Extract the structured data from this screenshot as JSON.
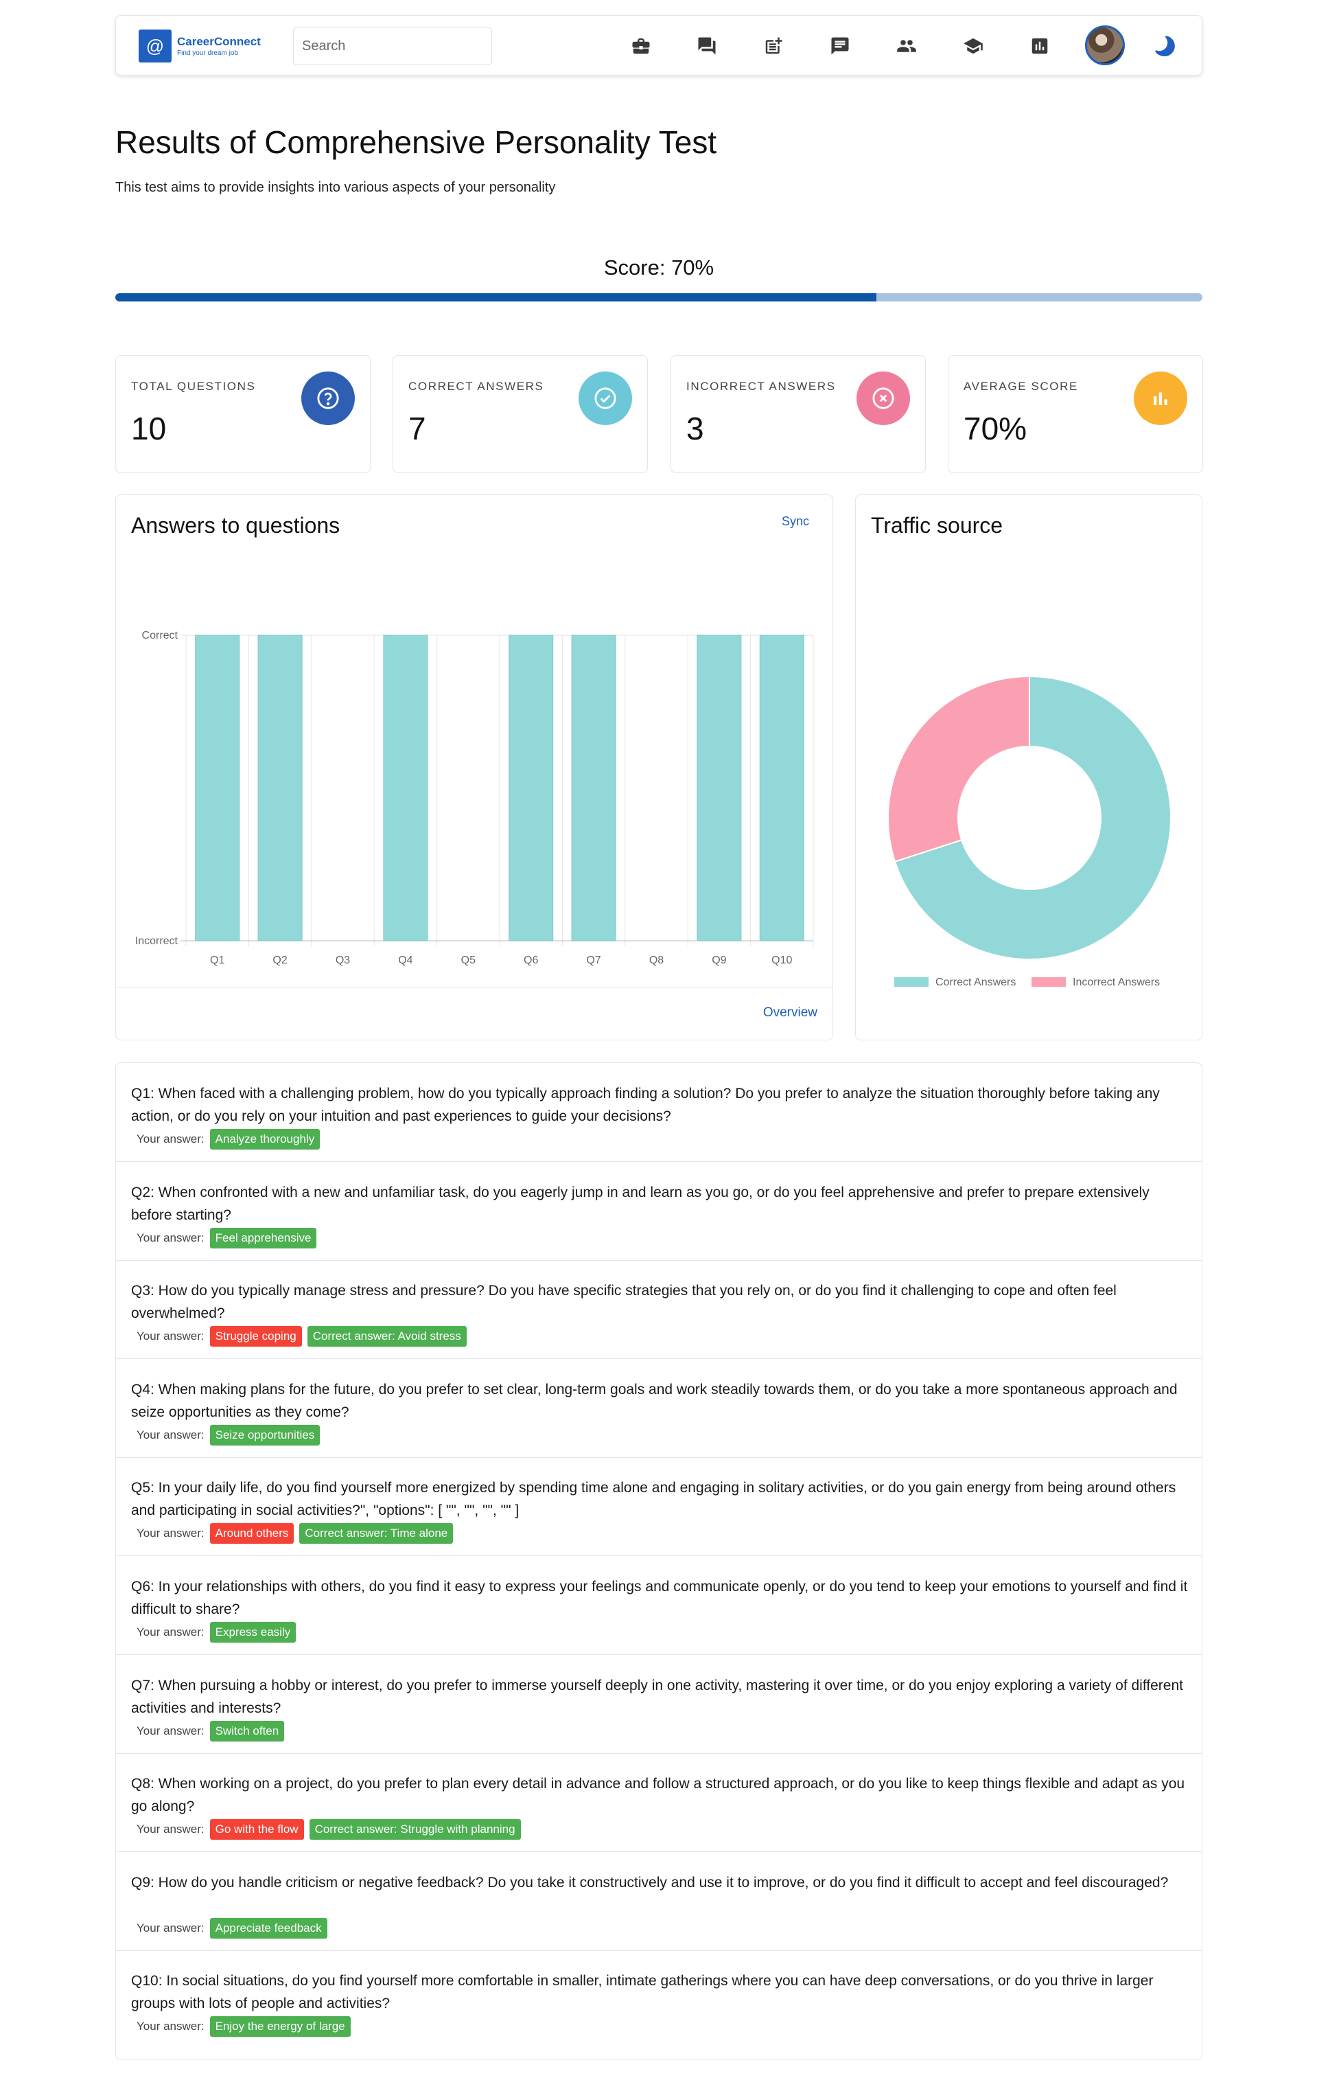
{
  "nav": {
    "logo_glyph": "@",
    "brand": "CareerConnect",
    "tagline": "Find your dream job",
    "search_placeholder": "Search",
    "icons": [
      "briefcase-icon",
      "forum-icon",
      "post-add-icon",
      "chat-icon",
      "people-icon",
      "school-icon",
      "analytics-icon"
    ]
  },
  "header": {
    "title": "Results of Comprehensive Personality Test",
    "subtitle": "This test aims to provide insights into various aspects of your personality",
    "score_label": "Score: 70%",
    "score_percent": 70
  },
  "stats": [
    {
      "label": "TOTAL QUESTIONS",
      "value": "10",
      "icon": "help-circle-icon",
      "color": "#2f5fb3"
    },
    {
      "label": "CORRECT ANSWERS",
      "value": "7",
      "icon": "check-circle-icon",
      "color": "#6cc7d8"
    },
    {
      "label": "INCORRECT ANSWERS",
      "value": "3",
      "icon": "close-circle-icon",
      "color": "#f07c9c"
    },
    {
      "label": "AVERAGE SCORE",
      "value": "70%",
      "icon": "bar-chart-icon",
      "color": "#fbb130"
    }
  ],
  "answers_card": {
    "title": "Answers to questions",
    "sync": "Sync",
    "overview": "Overview"
  },
  "traffic_card": {
    "title": "Traffic source"
  },
  "chart_data": [
    {
      "type": "bar",
      "categories": [
        "Q1",
        "Q2",
        "Q3",
        "Q4",
        "Q5",
        "Q6",
        "Q7",
        "Q8",
        "Q9",
        "Q10"
      ],
      "values": [
        1,
        1,
        0,
        1,
        0,
        1,
        1,
        0,
        1,
        1
      ],
      "y_tick_labels": [
        "Incorrect",
        "Correct"
      ],
      "ylim": [
        0,
        1
      ],
      "grid": true,
      "color": "#93d8d8"
    },
    {
      "type": "pie",
      "donut": true,
      "labels": [
        "Correct Answers",
        "Incorrect Answers"
      ],
      "values": [
        7,
        3
      ],
      "colors": [
        "#93d8d8",
        "#fba0b3"
      ],
      "legend": "bottom"
    }
  ],
  "questions": {
    "answer_label": "Your answer:",
    "items": [
      {
        "text": "Q1: When faced with a challenging problem, how do you typically approach finding a solution? Do you prefer to analyze the situation thoroughly before taking any action, or do you rely on your intuition and past experiences to guide your decisions?",
        "answer": "Analyze thoroughly",
        "correct": true,
        "correct_answer": ""
      },
      {
        "text": "Q2: When confronted with a new and unfamiliar task, do you eagerly jump in and learn as you go, or do you feel apprehensive and prefer to prepare extensively before starting?",
        "answer": "Feel apprehensive",
        "correct": true,
        "correct_answer": ""
      },
      {
        "text": "Q3: How do you typically manage stress and pressure? Do you have specific strategies that you rely on, or do you find it challenging to cope and often feel overwhelmed?",
        "answer": "Struggle coping",
        "correct": false,
        "correct_answer": "Correct answer: Avoid stress"
      },
      {
        "text": "Q4: When making plans for the future, do you prefer to set clear, long-term goals and work steadily towards them, or do you take a more spontaneous approach and seize opportunities as they come?",
        "answer": "Seize opportunities",
        "correct": true,
        "correct_answer": ""
      },
      {
        "text": "Q5: In your daily life, do you find yourself more energized by spending time alone and engaging in solitary activities, or do you gain energy from being around others and participating in social activities?\", \"options\": [ \"\", \"\", \"\", \"\" ]",
        "answer": "Around others",
        "correct": false,
        "correct_answer": "Correct answer: Time alone"
      },
      {
        "text": "Q6: In your relationships with others, do you find it easy to express your feelings and communicate openly, or do you tend to keep your emotions to yourself and find it difficult to share?",
        "answer": "Express easily",
        "correct": true,
        "correct_answer": ""
      },
      {
        "text": "Q7: When pursuing a hobby or interest, do you prefer to immerse yourself deeply in one activity, mastering it over time, or do you enjoy exploring a variety of different activities and interests?",
        "answer": "Switch often",
        "correct": true,
        "correct_answer": ""
      },
      {
        "text": "Q8: When working on a project, do you prefer to plan every detail in advance and follow a structured approach, or do you like to keep things flexible and adapt as you go along?",
        "answer": "Go with the flow",
        "correct": false,
        "correct_answer": "Correct answer: Struggle with planning"
      },
      {
        "text": "Q9: How do you handle criticism or negative feedback? Do you take it constructively and use it to improve, or do you find it difficult to accept and feel discouraged?",
        "answer": "Appreciate feedback",
        "correct": true,
        "correct_answer": ""
      },
      {
        "text": "Q10: In social situations, do you find yourself more comfortable in smaller, intimate gatherings where you can have deep conversations, or do you thrive in larger groups with lots of people and activities?",
        "answer": "Enjoy the energy of large",
        "correct": true,
        "correct_answer": ""
      }
    ]
  }
}
